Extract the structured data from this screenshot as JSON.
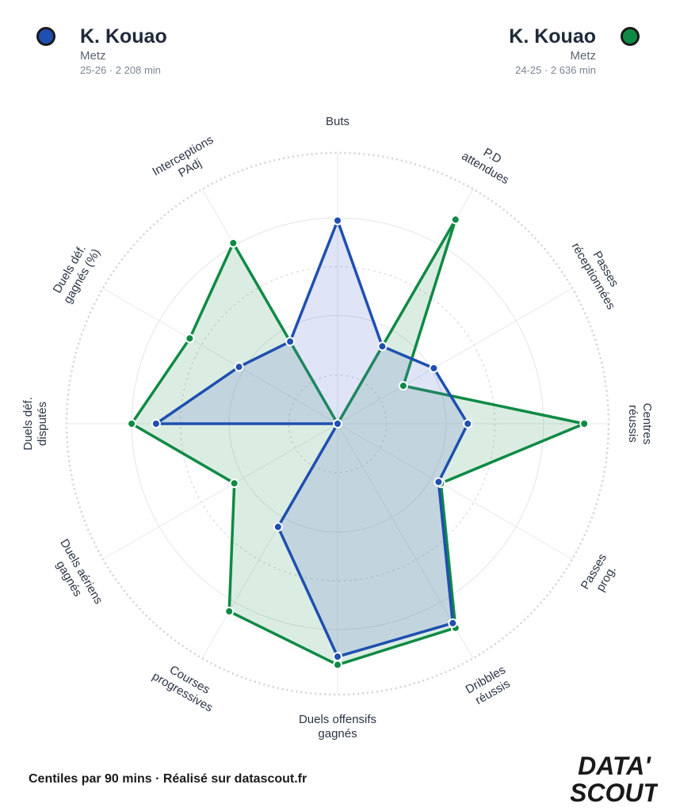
{
  "players": [
    {
      "name": "K. Kouao",
      "club": "Metz",
      "meta": "25-26 · 2 208 min",
      "color": "#1f4fb0"
    },
    {
      "name": "K. Kouao",
      "club": "Metz",
      "meta": "24-25 · 2 636 min",
      "color": "#0f8a45"
    }
  ],
  "footer": "Centiles par 90 mins · Réalisé sur datascout.fr",
  "logo": {
    "line1": "DATA'",
    "line2": "SCOUT"
  },
  "chart_data": {
    "type": "radar",
    "rlim": [
      0,
      100
    ],
    "categories": [
      [
        "Buts"
      ],
      [
        "P.D",
        "attendues"
      ],
      [
        "Passes",
        "réceptionnées"
      ],
      [
        "Centres",
        "réussis"
      ],
      [
        "Passes",
        "prog."
      ],
      [
        "Dribbles",
        "réussis"
      ],
      [
        "Duels offensifs",
        "gagnés"
      ],
      [
        "Courses",
        "progressives"
      ],
      [
        "Duels aériens",
        "gagnés"
      ],
      [
        "Duels déf.",
        "disputés"
      ],
      [
        "Duels déf.",
        "gagnés (%)"
      ],
      [
        "Interceptions",
        "PAdj"
      ]
    ],
    "series": [
      {
        "values": [
          75,
          33,
          41,
          48,
          43,
          85,
          86,
          44,
          0,
          67,
          42,
          35
        ],
        "color": "#1f4fb0"
      },
      {
        "values": [
          0,
          87,
          28,
          91,
          44,
          87,
          89,
          80,
          44,
          76,
          63,
          77
        ],
        "color": "#0f8a45"
      }
    ]
  }
}
